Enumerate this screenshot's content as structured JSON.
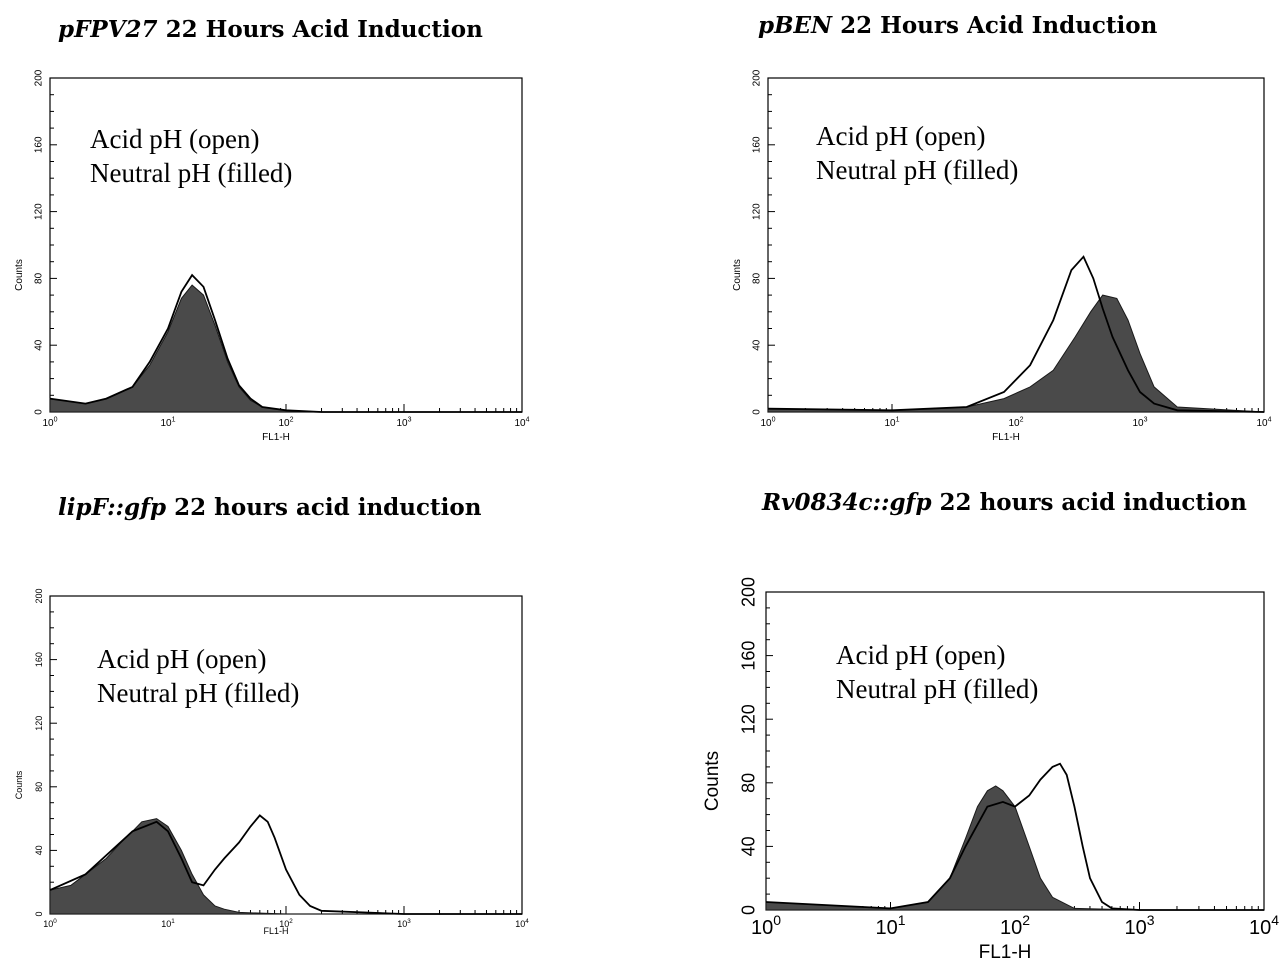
{
  "chart_data": [
    {
      "type": "area",
      "title_italic": "pFPV27",
      "title_rest": " 22 Hours Acid Induction",
      "xlabel": "FL1-H",
      "ylabel": "Counts",
      "x_scale": "log",
      "xlim": [
        1,
        10000
      ],
      "ylim": [
        0,
        200
      ],
      "yticks": [
        0,
        40,
        80,
        120,
        160,
        200
      ],
      "xtick_labels": [
        "10",
        "10",
        "10",
        "10",
        "10"
      ],
      "xtick_exponents": [
        "0",
        "1",
        "2",
        "3",
        "4"
      ],
      "legend": [
        "Acid pH (open)",
        "Neutral pH (filled)"
      ],
      "series": [
        {
          "label_style": "filled",
          "x": [
            1,
            2,
            3,
            5,
            7,
            10,
            13,
            16,
            20,
            25,
            32,
            40,
            50,
            63,
            100,
            200,
            1000,
            10000
          ],
          "y": [
            8,
            5,
            8,
            15,
            28,
            48,
            68,
            76,
            70,
            52,
            30,
            15,
            7,
            3,
            1,
            0,
            0,
            0
          ]
        },
        {
          "label_style": "open",
          "x": [
            1,
            2,
            3,
            5,
            7,
            10,
            13,
            16,
            20,
            25,
            32,
            40,
            50,
            63,
            100,
            200,
            1000,
            10000
          ],
          "y": [
            8,
            5,
            8,
            15,
            30,
            50,
            72,
            82,
            75,
            55,
            32,
            16,
            8,
            3,
            1,
            0,
            0,
            0
          ]
        }
      ]
    },
    {
      "type": "area",
      "title_italic": "pBEN",
      "title_rest": " 22 Hours Acid Induction",
      "xlabel": "FL1-H",
      "ylabel": "Counts",
      "x_scale": "log",
      "xlim": [
        1,
        10000
      ],
      "ylim": [
        0,
        200
      ],
      "yticks": [
        0,
        40,
        80,
        120,
        160,
        200
      ],
      "xtick_labels": [
        "10",
        "10",
        "10",
        "10",
        "10"
      ],
      "xtick_exponents": [
        "0",
        "1",
        "2",
        "3",
        "4"
      ],
      "legend": [
        "Acid pH (open)",
        "Neutral pH (filled)"
      ],
      "series": [
        {
          "label_style": "filled",
          "x": [
            1,
            10,
            40,
            80,
            130,
            200,
            300,
            400,
            500,
            650,
            800,
            1000,
            1300,
            2000,
            10000
          ],
          "y": [
            2,
            1,
            3,
            8,
            15,
            25,
            45,
            60,
            70,
            68,
            55,
            35,
            15,
            3,
            0
          ]
        },
        {
          "label_style": "open",
          "x": [
            1,
            10,
            40,
            80,
            130,
            200,
            280,
            350,
            420,
            500,
            600,
            800,
            1000,
            1300,
            2000,
            10000
          ],
          "y": [
            2,
            1,
            3,
            12,
            28,
            55,
            85,
            93,
            80,
            62,
            45,
            25,
            12,
            5,
            1,
            0
          ]
        }
      ]
    },
    {
      "type": "area",
      "title_italic": "lipF::gfp",
      "title_rest": " 22 hours acid induction",
      "xlabel": "FL1-H",
      "ylabel": "Counts",
      "x_scale": "log",
      "xlim": [
        1,
        10000
      ],
      "ylim": [
        0,
        200
      ],
      "yticks": [
        0,
        40,
        80,
        120,
        160,
        200
      ],
      "xtick_labels": [
        "10",
        "10",
        "10",
        "10",
        "10"
      ],
      "xtick_exponents": [
        "0",
        "1",
        "2",
        "3",
        "4"
      ],
      "legend": [
        "Acid pH (open)",
        "Neutral pH (filled)"
      ],
      "series": [
        {
          "label_style": "filled",
          "x": [
            1,
            1.5,
            2,
            3,
            4,
            5,
            6,
            8,
            10,
            13,
            16,
            20,
            25,
            30,
            40,
            100,
            10000
          ],
          "y": [
            15,
            18,
            25,
            35,
            45,
            52,
            58,
            60,
            55,
            40,
            25,
            12,
            5,
            3,
            1,
            0,
            0
          ]
        },
        {
          "label_style": "open",
          "x": [
            1,
            2,
            5,
            8,
            10,
            13,
            16,
            20,
            25,
            30,
            40,
            50,
            60,
            70,
            80,
            100,
            130,
            160,
            200,
            1000,
            10000
          ],
          "y": [
            15,
            25,
            52,
            58,
            52,
            35,
            20,
            18,
            28,
            35,
            45,
            55,
            62,
            58,
            48,
            28,
            12,
            5,
            2,
            0,
            0
          ]
        }
      ]
    },
    {
      "type": "area",
      "title_italic": "Rv0834c::gfp",
      "title_rest": " 22 hours acid induction",
      "xlabel": "FL1-H",
      "ylabel": "Counts",
      "x_scale": "log",
      "xlim": [
        1,
        10000
      ],
      "ylim": [
        0,
        200
      ],
      "yticks": [
        0,
        40,
        80,
        120,
        160,
        200
      ],
      "xtick_labels": [
        "10",
        "10",
        "10",
        "10",
        "10"
      ],
      "xtick_exponents": [
        "0",
        "1",
        "2",
        "3",
        "4"
      ],
      "legend": [
        "Acid pH (open)",
        "Neutral pH (filled)"
      ],
      "series": [
        {
          "label_style": "filled",
          "x": [
            1,
            10,
            20,
            30,
            40,
            50,
            60,
            70,
            80,
            100,
            130,
            160,
            200,
            300,
            1000,
            10000
          ],
          "y": [
            5,
            1,
            5,
            20,
            45,
            65,
            75,
            78,
            75,
            65,
            40,
            20,
            8,
            1,
            0,
            0
          ]
        },
        {
          "label_style": "open",
          "x": [
            1,
            10,
            20,
            30,
            40,
            60,
            80,
            100,
            130,
            160,
            200,
            230,
            260,
            300,
            350,
            400,
            500,
            600,
            1000,
            10000
          ],
          "y": [
            5,
            1,
            5,
            20,
            40,
            65,
            68,
            65,
            72,
            82,
            90,
            92,
            85,
            65,
            40,
            20,
            5,
            1,
            0,
            0
          ]
        }
      ]
    }
  ]
}
